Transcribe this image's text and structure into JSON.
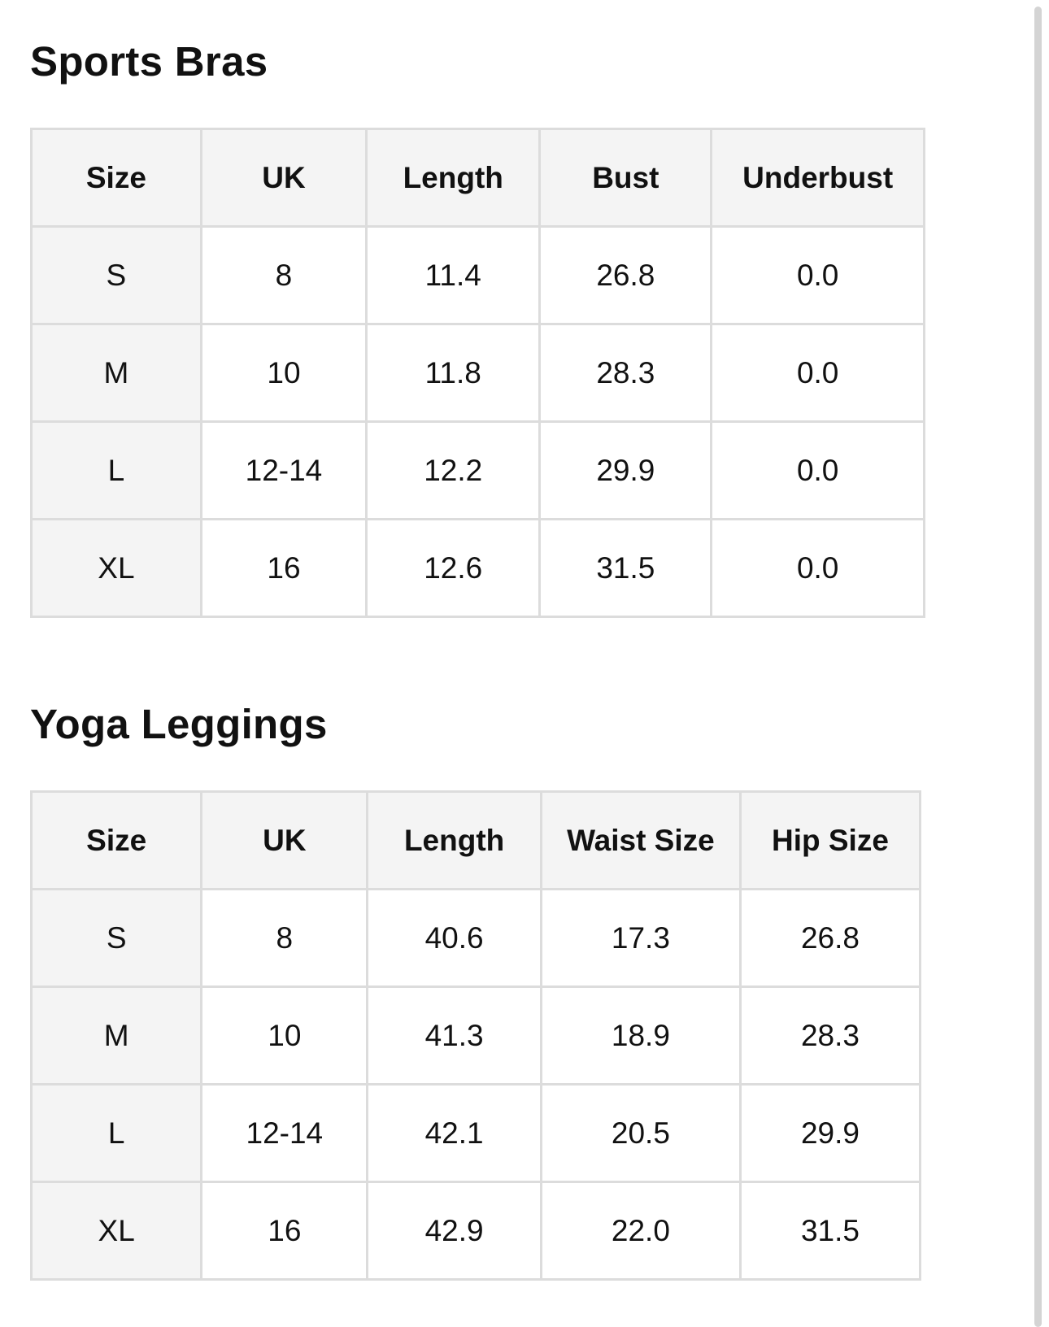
{
  "sections": [
    {
      "title": "Sports Bras",
      "headers": [
        "Size",
        "UK",
        "Length",
        "Bust",
        "Underbust"
      ],
      "rows": [
        [
          "S",
          "8",
          "11.4",
          "26.8",
          "0.0"
        ],
        [
          "M",
          "10",
          "11.8",
          "28.3",
          "0.0"
        ],
        [
          "L",
          "12-14",
          "12.2",
          "29.9",
          "0.0"
        ],
        [
          "XL",
          "16",
          "12.6",
          "31.5",
          "0.0"
        ]
      ]
    },
    {
      "title": "Yoga Leggings",
      "headers": [
        "Size",
        "UK",
        "Length",
        "Waist Size",
        "Hip Size"
      ],
      "rows": [
        [
          "S",
          "8",
          "40.6",
          "17.3",
          "26.8"
        ],
        [
          "M",
          "10",
          "41.3",
          "18.9",
          "28.3"
        ],
        [
          "L",
          "12-14",
          "42.1",
          "20.5",
          "29.9"
        ],
        [
          "XL",
          "16",
          "42.9",
          "22.0",
          "31.5"
        ]
      ]
    }
  ]
}
